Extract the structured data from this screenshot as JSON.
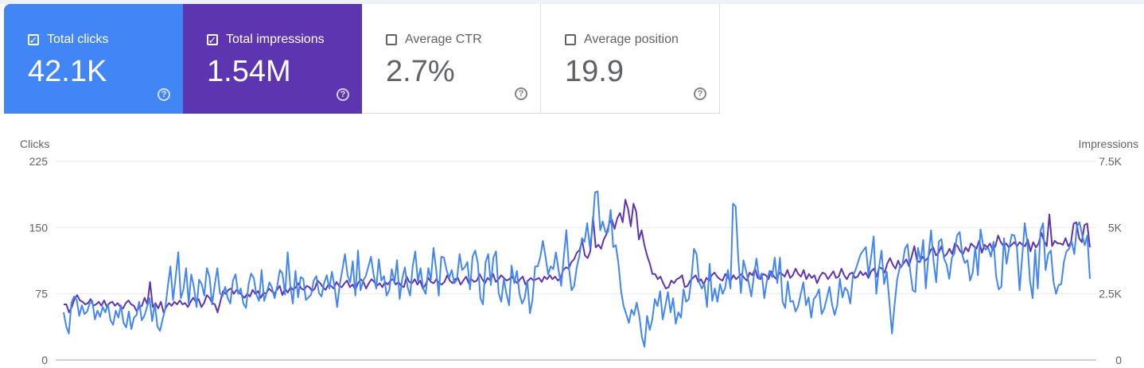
{
  "metrics": [
    {
      "label": "Total clicks",
      "value": "42.1K",
      "checked": true,
      "help": "?"
    },
    {
      "label": "Total impressions",
      "value": "1.54M",
      "checked": true,
      "help": "?"
    },
    {
      "label": "Average CTR",
      "value": "2.7%",
      "checked": false,
      "help": "?"
    },
    {
      "label": "Average position",
      "value": "19.9",
      "checked": false,
      "help": "?"
    }
  ],
  "colors": {
    "clicks": "#4285f4",
    "impressions": "#5e35b1",
    "grid": "#e8eaed",
    "axis_text": "#5f6368"
  },
  "chart_data": {
    "type": "line",
    "left_axis": {
      "label": "Clicks",
      "ticks": [
        "0",
        "75",
        "150",
        "225"
      ],
      "range": [
        0,
        225
      ]
    },
    "right_axis": {
      "label": "Impressions",
      "ticks": [
        "0",
        "2.5K",
        "5K",
        "7.5K"
      ],
      "range": [
        0,
        7500
      ]
    },
    "grid": true,
    "series": [
      {
        "axis": "left",
        "values": [
          54,
          38,
          30,
          65,
          72,
          68,
          50,
          62,
          52,
          55,
          64,
          67,
          46,
          56,
          49,
          60,
          54,
          63,
          45,
          40,
          56,
          48,
          62,
          42,
          37,
          55,
          35,
          48,
          51,
          66,
          45,
          50,
          60,
          70,
          44,
          64,
          38,
          33,
          46,
          58,
          84,
          106,
          68,
          94,
          122,
          70,
          80,
          104,
          64,
          97,
          83,
          60,
          91,
          86,
          73,
          104,
          94,
          63,
          85,
          104,
          76,
          72,
          83,
          70,
          64,
          90,
          97,
          75,
          81,
          64,
          59,
          86,
          98,
          93,
          74,
          67,
          102,
          67,
          77,
          88,
          82,
          70,
          84,
          102,
          98,
          74,
          122,
          85,
          64,
          101,
          71,
          94,
          92,
          68,
          71,
          74,
          90,
          95,
          76,
          72,
          87,
          96,
          81,
          100,
          83,
          60,
          86,
          102,
          120,
          96,
          88,
          112,
          73,
          124,
          79,
          90,
          95,
          106,
          117,
          97,
          81,
          114,
          90,
          95,
          73,
          79,
          103,
          87,
          113,
          69,
          92,
          105,
          83,
          73,
          106,
          123,
          89,
          104,
          81,
          75,
          104,
          91,
          127,
          103,
          73,
          117,
          116,
          102,
          93,
          102,
          87,
          91,
          120,
          102,
          105,
          111,
          80,
          117,
          124,
          110,
          70,
          63,
          111,
          120,
          85,
          116,
          123,
          76,
          66,
          92,
          75,
          62,
          107,
          87,
          101,
          75,
          64,
          70,
          90,
          53,
          68,
          106,
          106,
          117,
          135,
          117,
          97,
          106,
          103,
          122,
          102,
          84,
          116,
          147,
          104,
          79,
          84,
          105,
          118,
          138,
          134,
          155,
          128,
          148,
          190,
          191,
          147,
          157,
          145,
          145,
          170,
          128,
          130,
          109,
          78,
          61,
          52,
          42,
          57,
          51,
          65,
          50,
          26,
          15,
          50,
          34,
          46,
          69,
          61,
          78,
          46,
          61,
          77,
          54,
          70,
          41,
          54,
          48,
          80,
          66,
          69,
          92,
          126,
          120,
          88,
          81,
          86,
          60,
          109,
          67,
          81,
          66,
          86,
          75,
          82,
          102,
          81,
          177,
          174,
          115,
          76,
          113,
          101,
          88,
          72,
          95,
          115,
          92,
          98,
          70,
          90,
          101,
          94,
          116,
          87,
          116,
          66,
          59,
          89,
          66,
          67,
          55,
          61,
          75,
          88,
          62,
          71,
          48,
          69,
          73,
          80,
          52,
          58,
          70,
          83,
          63,
          51,
          62,
          92,
          71,
          82,
          78,
          64,
          95,
          102,
          111,
          120,
          124,
          128,
          96,
          117,
          140,
          75,
          104,
          124,
          86,
          100,
          67,
          30,
          62,
          91,
          105,
          108,
          126,
          131,
          101,
          79,
          77,
          127,
          112,
          136,
          81,
          117,
          147,
          111,
          88,
          134,
          137,
          115,
          108,
          92,
          116,
          121,
          141,
          145,
          119,
          110,
          113,
          90,
          99,
          128,
          96,
          148,
          130,
          125,
          127,
          117,
          134,
          95,
          80,
          83,
          138,
          109,
          127,
          142,
          141,
          127,
          79,
          117,
          155,
          133,
          90,
          70,
          125,
          81,
          146,
          155,
          102,
          120,
          124,
          89,
          75,
          85,
          86,
          111,
          123,
          126,
          134,
          120,
          151,
          156,
          142,
          130,
          141,
          92
        ]
      },
      {
        "axis": "right",
        "values": [
          2100,
          2100,
          1800,
          2000,
          2300,
          2450,
          2250,
          2200,
          2100,
          2150,
          2300,
          2050,
          2100,
          2200,
          2050,
          2250,
          2000,
          2150,
          2200,
          2050,
          2150,
          2000,
          1950,
          2150,
          2250,
          2100,
          2050,
          1850,
          2000,
          2050,
          2350,
          2100,
          2950,
          2000,
          2150,
          1950,
          2200,
          1800,
          2000,
          2150,
          2050,
          2200,
          2100,
          2250,
          2100,
          2150,
          2000,
          2200,
          2350,
          2200,
          2300,
          2000,
          2150,
          2450,
          2350,
          2150,
          2100,
          1800,
          2200,
          2600,
          2500,
          2650,
          2700,
          2500,
          2650,
          2550,
          2450,
          2350,
          2500,
          2400,
          2650,
          2500,
          2600,
          2350,
          2550,
          2500,
          2700,
          2600,
          2500,
          2650,
          2800,
          2450,
          2700,
          2550,
          2750,
          2650,
          2750,
          2900,
          2700,
          2650,
          2800,
          2750,
          2600,
          2700,
          3000,
          2900,
          2750,
          2650,
          2850,
          2800,
          2700,
          2950,
          2800,
          2750,
          2900,
          3000,
          2750,
          2850,
          2650,
          2900,
          3050,
          2950,
          2700,
          2900,
          3050,
          2950,
          2800,
          2900,
          2750,
          2950,
          2850,
          3000,
          3050,
          2850,
          2950,
          2800,
          2750,
          3150,
          2950,
          2900,
          3050,
          2850,
          3000,
          2700,
          2850,
          3100,
          2950,
          2900,
          3050,
          2900,
          2850,
          2950,
          3200,
          3000,
          2900,
          3050,
          3100,
          2850,
          3000,
          3150,
          2900,
          3050,
          2950,
          3000,
          3250,
          3050,
          2900,
          3100,
          3000,
          3250,
          2950,
          3050,
          3200,
          3100,
          3000,
          3050,
          3150,
          3000,
          2900,
          3050,
          3150,
          2850,
          3000,
          3100,
          3000,
          3050,
          3100,
          2950,
          3150,
          3050,
          3200,
          3050,
          3150,
          3000,
          3100,
          3400,
          3500,
          3450,
          3700,
          3800,
          4050,
          4150,
          4500,
          3950,
          3850,
          4100,
          5400,
          4250,
          4350,
          4200,
          4550,
          4750,
          5150,
          5300,
          4950,
          5350,
          5550,
          5200,
          6050,
          5700,
          5050,
          5900,
          5600,
          4550,
          4900,
          4350,
          3950,
          3650,
          3250,
          3250,
          3050,
          3150,
          2900,
          2700,
          2750,
          3000,
          2900,
          3050,
          3100,
          3200,
          2750,
          2800,
          3000,
          3100,
          3200,
          2950,
          3050,
          2850,
          3100,
          3000,
          3200,
          3300,
          3150,
          3050,
          3000,
          3250,
          3100,
          3000,
          3200,
          3050,
          3150,
          3250,
          3100,
          3000,
          3300,
          3200,
          3450,
          3100,
          3050,
          3250,
          3200,
          3050,
          3350,
          3150,
          3050,
          3300,
          3250,
          3150,
          3400,
          3100,
          3200,
          3450,
          3250,
          3150,
          3400,
          3050,
          3250,
          3100,
          3200,
          2900,
          3150,
          3300,
          3250,
          3050,
          3200,
          3350,
          3100,
          3150,
          3450,
          3200,
          3050,
          3250,
          3300,
          3100,
          3150,
          3350,
          3200,
          3300,
          3100,
          3350,
          3450,
          3150,
          3500,
          3450,
          3300,
          3650,
          3850,
          3600,
          3450,
          3750,
          3500,
          3650,
          3800,
          3550,
          3900,
          4300,
          3750,
          3700,
          3900,
          3750,
          3850,
          4150,
          4250,
          3950,
          4050,
          4300,
          3900,
          4000,
          4200,
          4000,
          4400,
          4300,
          4100,
          4000,
          4250,
          4100,
          4400,
          4300,
          4200,
          4500,
          4050,
          4350,
          4250,
          4400,
          4150,
          4300,
          4700,
          4450,
          4300,
          4400,
          4250,
          4350,
          4450,
          4300,
          4450,
          4350,
          4300,
          4550,
          4100,
          4450,
          4250,
          4400,
          4800,
          4500,
          4300,
          5500,
          4300,
          4500,
          4400,
          4400,
          4350,
          4600,
          4300,
          4450,
          5150,
          5200,
          4600,
          4450,
          5100,
          5150,
          4250
        ]
      }
    ]
  }
}
